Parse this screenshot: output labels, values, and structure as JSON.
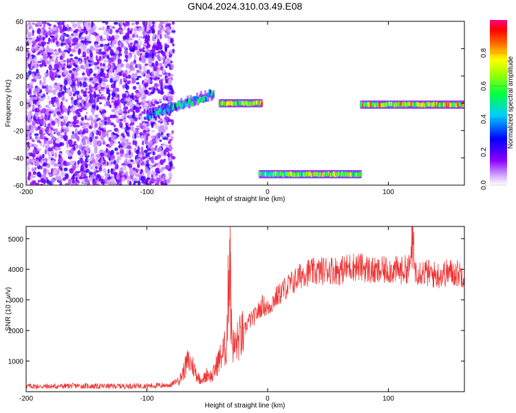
{
  "title": "GN04.2024.310.03.49.E08",
  "chart_data": [
    {
      "type": "heatmap",
      "title": "GN04.2024.310.03.49.E08",
      "xlabel": "Height of straight line (km)",
      "ylabel": "Frequency (Hz)",
      "xlim": [
        -200,
        163
      ],
      "ylim": [
        -60,
        60
      ],
      "x_ticks": [
        "-200",
        "-100",
        "0",
        "100"
      ],
      "y_ticks": [
        "60",
        "40",
        "20",
        "0",
        "-20",
        "-40",
        "-60"
      ],
      "grid": false,
      "colorbar": {
        "label": "Normalized spectral amplitude",
        "range": [
          0,
          1
        ],
        "ticks": [
          "0.0",
          "0.2",
          "0.4",
          "0.6",
          "0.8"
        ],
        "colormap": [
          "#ffffff",
          "#8a00ff",
          "#0000ff",
          "#00ccff",
          "#00ff44",
          "#ffff00",
          "#ff6600",
          "#ff0000",
          "#ff0080"
        ]
      },
      "features": [
        {
          "name": "broadband noise",
          "x_range": [
            -200,
            -78
          ],
          "freq_range": [
            -60,
            60
          ],
          "amplitude": 0.1
        },
        {
          "name": "rising tone",
          "x_range": [
            -100,
            -45
          ],
          "freq_start": -9,
          "freq_end": 7,
          "amplitude": 0.5
        },
        {
          "name": "tone near 0 Hz",
          "x_range": [
            -40,
            -5
          ],
          "freq": 0,
          "amplitude": 0.8
        },
        {
          "name": "tone near -52 Hz",
          "x_range": [
            -7,
            77
          ],
          "freq": -52,
          "amplitude": 0.7
        },
        {
          "name": "tone near 0 Hz",
          "x_range": [
            77,
            163
          ],
          "freq": -1,
          "amplitude": 0.8
        }
      ]
    },
    {
      "type": "line",
      "xlabel": "Height of straight line (km)",
      "ylabel": "SNR (10 * v/v)",
      "xlim": [
        -200,
        163
      ],
      "ylim": [
        0,
        5400
      ],
      "x_ticks": [
        "-200",
        "-100",
        "0",
        "100"
      ],
      "y_ticks": [
        "5000",
        "4000",
        "3000",
        "2000",
        "1000"
      ],
      "grid": false,
      "color": "#ee3333",
      "series": [
        {
          "x": [
            -200,
            -180,
            -160,
            -140,
            -120,
            -100,
            -90,
            -80,
            -72,
            -66,
            -62,
            -58,
            -54,
            -50,
            -46,
            -42,
            -38,
            -34,
            -31,
            -30,
            -28,
            -24,
            -20,
            -16,
            -12,
            -8,
            -4,
            0,
            5,
            10,
            15,
            20,
            25,
            30,
            40,
            50,
            60,
            70,
            80,
            90,
            100,
            110,
            118,
            120,
            122,
            130,
            140,
            150,
            163
          ],
          "y": [
            180,
            170,
            190,
            175,
            185,
            190,
            200,
            220,
            450,
            1000,
            850,
            500,
            350,
            600,
            480,
            900,
            1200,
            1500,
            5400,
            2000,
            1400,
            1700,
            1900,
            2300,
            2400,
            2600,
            2850,
            2700,
            3000,
            3200,
            3400,
            3550,
            3700,
            3900,
            3900,
            4000,
            3950,
            4100,
            4050,
            3900,
            4000,
            3950,
            4050,
            5400,
            4000,
            3900,
            3800,
            3900,
            3850
          ]
        }
      ]
    }
  ]
}
